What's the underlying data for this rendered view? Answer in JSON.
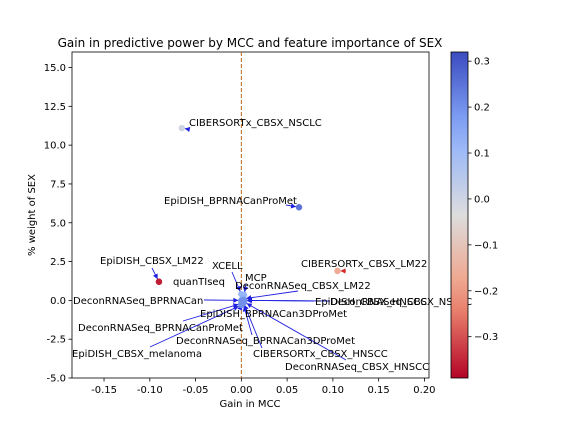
{
  "chart_data": {
    "type": "scatter",
    "title": "Gain in predictive power by MCC and feature importance of SEX",
    "xlabel": "Gain in MCC",
    "ylabel": "% weight of SEX",
    "xlim": [
      -0.185,
      0.205
    ],
    "ylim": [
      -5.0,
      16.0
    ],
    "xticks": [
      "-0.15",
      "-0.10",
      "-0.05",
      "0.00",
      "0.05",
      "0.10",
      "0.15",
      "0.20"
    ],
    "yticks": [
      "-5.0",
      "-2.5",
      "0.0",
      "2.5",
      "5.0",
      "7.5",
      "10.0",
      "12.5",
      "15.0"
    ],
    "reference_line_x": 0.0,
    "reference_line_color": "#b8651b",
    "grid": false,
    "colorbar": {
      "cmap": "coolwarm_r",
      "min": -0.39,
      "max": 0.32,
      "ticks": [
        "0.3",
        "0.2",
        "0.1",
        "0.0",
        "−0.1",
        "−0.2",
        "−0.3"
      ]
    },
    "points": [
      {
        "label": "CIBERSORTx_CBSX_NSCLC",
        "x": -0.065,
        "y": 11.1,
        "c": 0.0
      },
      {
        "label": "EpiDISH_BPRNACanProMet",
        "x": 0.063,
        "y": 6.0,
        "c": 0.25
      },
      {
        "label": "CIBERSORTx_CBSX_LM22",
        "x": 0.105,
        "y": 1.9,
        "c": -0.17
      },
      {
        "label": "EpiDISH_CBSX_LM22",
        "x": -0.09,
        "y": 1.2,
        "c": -0.36
      },
      {
        "label": "quanTIseq",
        "x": -0.09,
        "y": 1.2,
        "c": -0.36
      },
      {
        "label": "XCELL",
        "x": 0.0,
        "y": 0.4,
        "c": 0.12
      },
      {
        "label": "MCP",
        "x": 0.003,
        "y": 0.35,
        "c": 0.12
      },
      {
        "label": "DeconRNASeq_CBSX_LM22",
        "x": 0.002,
        "y": 0.1,
        "c": 0.15
      },
      {
        "label": "DeconRNASeq_BPRNACan",
        "x": 0.0,
        "y": 0.0,
        "c": 0.2
      },
      {
        "label": "EpiDISH_CBSX_HNSCC",
        "x": 0.002,
        "y": 0.0,
        "c": 0.2
      },
      {
        "label": "DeconRNASeq_CBSX_NSCLC",
        "x": 0.003,
        "y": 0.0,
        "c": 0.2
      },
      {
        "label": "EpiDISH_BPRNACan3DProMet",
        "x": 0.001,
        "y": -0.1,
        "c": 0.2
      },
      {
        "label": "DeconRNASeq_BPRNACanProMet",
        "x": 0.0,
        "y": -0.2,
        "c": 0.2
      },
      {
        "label": "DeconRNASeq_BPRNACan3DProMet",
        "x": 0.002,
        "y": -0.2,
        "c": 0.2
      },
      {
        "label": "EpiDISH_CBSX_melanoma",
        "x": 0.0,
        "y": -0.3,
        "c": 0.2
      },
      {
        "label": "CIBERSORTx_CBSX_HNSCC",
        "x": 0.002,
        "y": -0.1,
        "c": 0.2
      },
      {
        "label": "DeconRNASeq_CBSX_HNSCC",
        "x": 0.003,
        "y": -0.1,
        "c": 0.2
      }
    ]
  }
}
